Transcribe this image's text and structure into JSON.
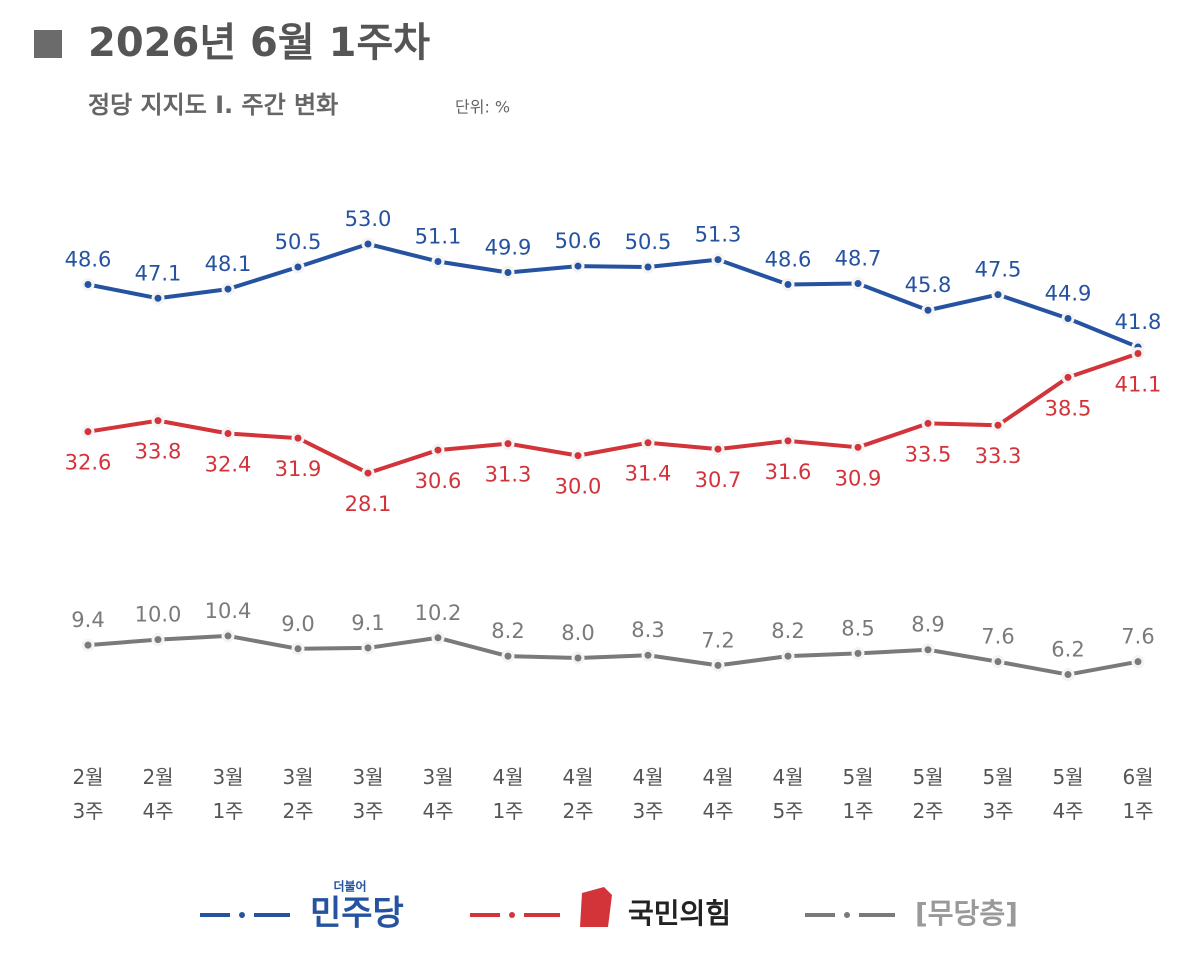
{
  "chart_data": {
    "type": "line",
    "title": "2026년 6월 1주차",
    "subtitle": "정당 지지도 Ⅰ. 주간 변화",
    "unit": "단위: %",
    "categories": [
      [
        "2월",
        "3주"
      ],
      [
        "2월",
        "4주"
      ],
      [
        "3월",
        "1주"
      ],
      [
        "3월",
        "2주"
      ],
      [
        "3월",
        "3주"
      ],
      [
        "3월",
        "4주"
      ],
      [
        "4월",
        "1주"
      ],
      [
        "4월",
        "2주"
      ],
      [
        "4월",
        "3주"
      ],
      [
        "4월",
        "4주"
      ],
      [
        "4월",
        "5주"
      ],
      [
        "5월",
        "1주"
      ],
      [
        "5월",
        "2주"
      ],
      [
        "5월",
        "3주"
      ],
      [
        "5월",
        "4주"
      ],
      [
        "6월",
        "1주"
      ]
    ],
    "series": [
      {
        "name": "민주당",
        "logo_text": "더불어",
        "color": "#2553a0",
        "values": [
          48.6,
          47.1,
          48.1,
          50.5,
          53.0,
          51.1,
          49.9,
          50.6,
          50.5,
          51.3,
          48.6,
          48.7,
          45.8,
          47.5,
          44.9,
          41.8
        ],
        "value_labels": [
          "48.6",
          "47.1",
          "48.1",
          "50.5",
          "53.0",
          "51.1",
          "49.9",
          "50.6",
          "50.5",
          "51.3",
          "48.6",
          "48.7",
          "45.8",
          "47.5",
          "44.9",
          "41.8"
        ]
      },
      {
        "name": "국민의힘",
        "color": "#d2343a",
        "values": [
          32.6,
          33.8,
          32.4,
          31.9,
          28.1,
          30.6,
          31.3,
          30.0,
          31.4,
          30.7,
          31.6,
          30.9,
          33.5,
          33.3,
          38.5,
          41.1
        ],
        "value_labels": [
          "32.6",
          "33.8",
          "32.4",
          "31.9",
          "28.1",
          "30.6",
          "31.3",
          "30.0",
          "31.4",
          "30.7",
          "31.6",
          "30.9",
          "33.5",
          "33.3",
          "38.5",
          "41.1"
        ]
      },
      {
        "name": "[무당층]",
        "color": "#7a7a7a",
        "values": [
          9.4,
          10.0,
          10.4,
          9.0,
          9.1,
          10.2,
          8.2,
          8.0,
          8.3,
          7.2,
          8.2,
          8.5,
          8.9,
          7.6,
          6.2,
          7.6
        ],
        "value_labels": [
          "9.4",
          "10.0",
          "10.4",
          "9.0",
          "9.1",
          "10.2",
          "8.2",
          "8.0",
          "8.3",
          "7.2",
          "8.2",
          "8.5",
          "8.9",
          "7.6",
          "6.2",
          "7.6"
        ]
      }
    ]
  }
}
